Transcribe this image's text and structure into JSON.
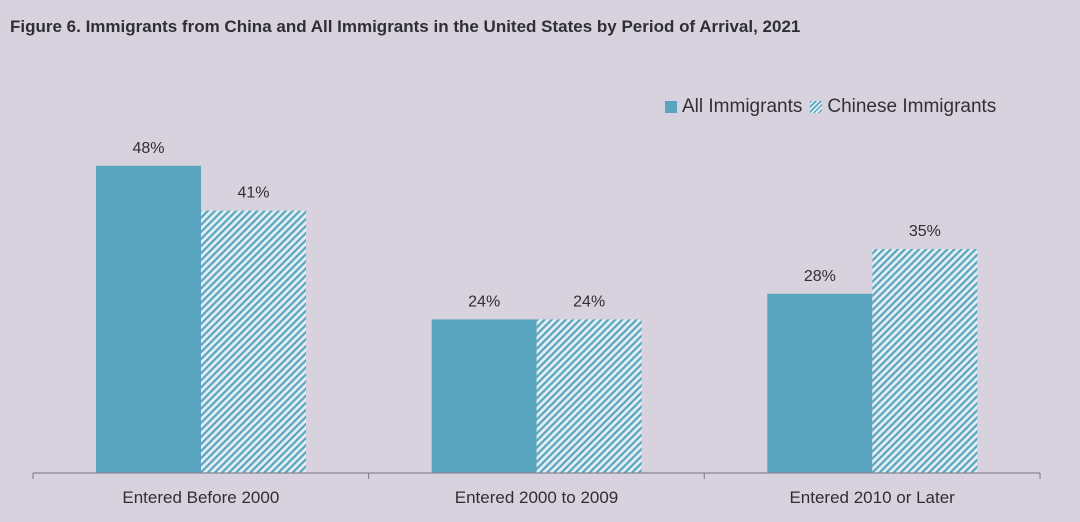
{
  "chart_data": {
    "type": "bar",
    "title": "Figure 6. Immigrants from China and All Immigrants in the United States by Period of Arrival, 2021",
    "categories": [
      "Entered Before 2000",
      "Entered 2000 to 2009",
      "Entered 2010 or Later"
    ],
    "series": [
      {
        "name": "All Immigrants",
        "values": [
          48,
          24,
          28
        ],
        "labels": [
          "48%",
          "24%",
          "28%"
        ],
        "style": "solid"
      },
      {
        "name": "Chinese Immigrants",
        "values": [
          41,
          24,
          35
        ],
        "labels": [
          "41%",
          "24%",
          "35%"
        ],
        "style": "hatched"
      }
    ],
    "unit": "%",
    "ylim": [
      0,
      60
    ],
    "grid": false,
    "legend_position": "top-right",
    "colors": {
      "background": "#d7d2de",
      "bar_solid": "#59a5bf",
      "hatch_light": "#e3eef3",
      "axis": "#8a8592",
      "text": "#2f2f33"
    }
  }
}
